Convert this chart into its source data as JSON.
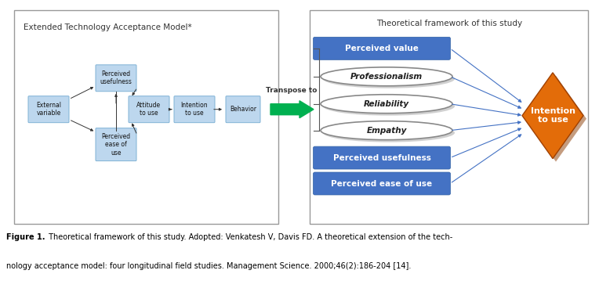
{
  "fig_width": 7.64,
  "fig_height": 3.59,
  "dpi": 100,
  "bg_color": "#ffffff",
  "left_panel_title": "Extended Technology Acceptance Model*",
  "right_panel_title": "Theoretical framework of this study",
  "left_box_color": "#bdd7ee",
  "left_box_edge": "#7fb2d5",
  "blue_box_color": "#4472c4",
  "blue_box_edge": "#2e5fa3",
  "blue_box_text": "#ffffff",
  "oval_face": "#f2f2f2",
  "oval_edge_light": "#c0c0c0",
  "oval_edge_dark": "#888888",
  "oval_text": "#1f1f1f",
  "diamond_face": "#e36c09",
  "diamond_edge": "#a04000",
  "diamond_text": "#ffffff",
  "arrow_blue": "#4472c4",
  "arrow_black": "#333333",
  "green_arrow": "#00b050",
  "border_color": "#999999",
  "caption_bold": "Figure 1.",
  "caption_rest": " Theoretical framework of this study. Adopted: Venkatesh V, Davis FD. A theoretical extension of the tech-",
  "caption_line2": "nology acceptance model: four longitudinal field studies. Management Science. 2000;46(2):186-204 [14]."
}
